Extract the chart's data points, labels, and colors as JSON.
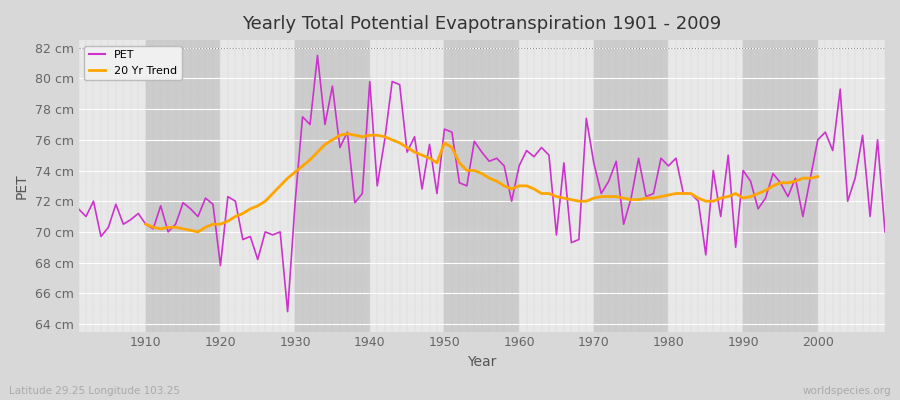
{
  "title": "Yearly Total Potential Evapotranspiration 1901 - 2009",
  "xlabel": "Year",
  "ylabel": "PET",
  "subtitle_left": "Latitude 29.25 Longitude 103.25",
  "subtitle_right": "worldspecies.org",
  "ylim": [
    63.5,
    82.5
  ],
  "yticks": [
    64,
    66,
    68,
    70,
    72,
    74,
    76,
    78,
    80,
    82
  ],
  "ytick_labels": [
    "64 cm",
    "66 cm",
    "68 cm",
    "70 cm",
    "72 cm",
    "74 cm",
    "76 cm",
    "78 cm",
    "80 cm",
    "82 cm"
  ],
  "xticks": [
    1910,
    1920,
    1930,
    1940,
    1950,
    1960,
    1970,
    1980,
    1990,
    2000
  ],
  "pet_color": "#CC33CC",
  "trend_color": "#FFA500",
  "fig_bg_color": "#D8D8D8",
  "plot_bg_color": "#DCDCDC",
  "years": [
    1901,
    1902,
    1903,
    1904,
    1905,
    1906,
    1907,
    1908,
    1909,
    1910,
    1911,
    1912,
    1913,
    1914,
    1915,
    1916,
    1917,
    1918,
    1919,
    1920,
    1921,
    1922,
    1923,
    1924,
    1925,
    1926,
    1927,
    1928,
    1929,
    1930,
    1931,
    1932,
    1933,
    1934,
    1935,
    1936,
    1937,
    1938,
    1939,
    1940,
    1941,
    1942,
    1943,
    1944,
    1945,
    1946,
    1947,
    1948,
    1949,
    1950,
    1951,
    1952,
    1953,
    1954,
    1955,
    1956,
    1957,
    1958,
    1959,
    1960,
    1961,
    1962,
    1963,
    1964,
    1965,
    1966,
    1967,
    1968,
    1969,
    1970,
    1971,
    1972,
    1973,
    1974,
    1975,
    1976,
    1977,
    1978,
    1979,
    1980,
    1981,
    1982,
    1983,
    1984,
    1985,
    1986,
    1987,
    1988,
    1989,
    1990,
    1991,
    1992,
    1993,
    1994,
    1995,
    1996,
    1997,
    1998,
    1999,
    2000,
    2001,
    2002,
    2003,
    2004,
    2005,
    2006,
    2007,
    2008,
    2009
  ],
  "pet_values": [
    71.5,
    71.0,
    72.0,
    69.7,
    70.3,
    71.8,
    70.5,
    70.8,
    71.2,
    70.5,
    70.2,
    71.7,
    70.0,
    70.5,
    71.9,
    71.5,
    71.0,
    72.2,
    71.8,
    67.8,
    72.3,
    72.0,
    69.5,
    69.7,
    68.2,
    70.0,
    69.8,
    70.0,
    64.8,
    71.9,
    77.5,
    77.0,
    81.5,
    77.0,
    79.5,
    75.5,
    76.5,
    71.9,
    72.5,
    79.8,
    73.0,
    76.0,
    79.8,
    79.6,
    75.2,
    76.2,
    72.8,
    75.7,
    72.5,
    76.7,
    76.5,
    73.2,
    73.0,
    75.9,
    75.2,
    74.6,
    74.8,
    74.3,
    72.0,
    74.3,
    75.3,
    74.9,
    75.5,
    75.0,
    69.8,
    74.5,
    69.3,
    69.5,
    77.4,
    74.5,
    72.5,
    73.3,
    74.6,
    70.5,
    72.2,
    74.8,
    72.3,
    72.5,
    74.8,
    74.3,
    74.8,
    72.5,
    72.5,
    72.0,
    68.5,
    74.0,
    71.0,
    75.0,
    69.0,
    74.0,
    73.3,
    71.5,
    72.2,
    73.8,
    73.2,
    72.3,
    73.5,
    71.0,
    73.5,
    76.0,
    76.5,
    75.3,
    79.3,
    72.0,
    73.5,
    76.3,
    71.0,
    76.0,
    70.0
  ],
  "trend_values": [
    null,
    null,
    null,
    null,
    null,
    null,
    null,
    null,
    null,
    70.5,
    70.3,
    70.2,
    70.3,
    70.3,
    70.2,
    70.1,
    70.0,
    70.3,
    70.5,
    70.5,
    70.7,
    71.0,
    71.2,
    71.5,
    71.7,
    72.0,
    72.5,
    73.0,
    73.5,
    73.9,
    74.3,
    74.7,
    75.2,
    75.7,
    76.0,
    76.3,
    76.4,
    76.3,
    76.2,
    76.3,
    76.3,
    76.2,
    76.0,
    75.8,
    75.5,
    75.2,
    75.0,
    74.8,
    74.5,
    75.8,
    75.5,
    74.5,
    74.0,
    74.0,
    73.8,
    73.5,
    73.3,
    73.0,
    72.8,
    73.0,
    73.0,
    72.8,
    72.5,
    72.5,
    72.3,
    72.2,
    72.1,
    72.0,
    72.0,
    72.2,
    72.3,
    72.3,
    72.3,
    72.2,
    72.1,
    72.1,
    72.2,
    72.2,
    72.3,
    72.4,
    72.5,
    72.5,
    72.5,
    72.2,
    72.0,
    72.0,
    72.2,
    72.3,
    72.5,
    72.2,
    72.3,
    72.5,
    72.7,
    73.0,
    73.2,
    73.2,
    73.3,
    73.5,
    73.5,
    73.6,
    null,
    null,
    null,
    null,
    null,
    null,
    null,
    null,
    null
  ]
}
